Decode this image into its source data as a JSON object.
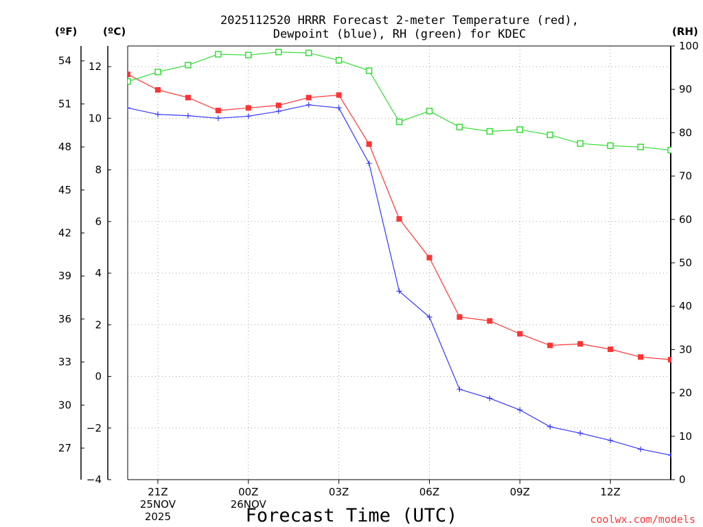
{
  "chart_data": {
    "type": "line",
    "title_line1": "2025112520 HRRR Forecast 2-meter Temperature (red),",
    "title_line2": "Dewpoint (blue), RH (green) for KDEC",
    "xlabel": "Forecast Time (UTC)",
    "units": {
      "fahrenheit": "(ºF)",
      "celsius": "(ºC)",
      "rh": "(RH)"
    },
    "credit": "coolwx.com/models",
    "x_ticks": [
      {
        "hour": 1,
        "lines": [
          "21Z",
          "25NOV",
          "2025"
        ]
      },
      {
        "hour": 4,
        "lines": [
          "00Z",
          "26NOV"
        ]
      },
      {
        "hour": 7,
        "lines": [
          "03Z"
        ]
      },
      {
        "hour": 10,
        "lines": [
          "06Z"
        ]
      },
      {
        "hour": 13,
        "lines": [
          "09Z"
        ]
      },
      {
        "hour": 16,
        "lines": [
          "12Z"
        ]
      }
    ],
    "xlim": [
      0,
      18
    ],
    "celsius_axis": {
      "ylim": [
        -4,
        12.8
      ],
      "ticks": [
        12,
        10,
        8,
        6,
        4,
        2,
        0,
        -2,
        -4
      ],
      "labels": [
        "12",
        "10",
        "8",
        "6",
        "4",
        "2",
        "0",
        "−2",
        "−4"
      ]
    },
    "fahrenheit_axis": {
      "ticks": [
        54,
        51,
        48,
        45,
        42,
        39,
        36,
        33,
        30,
        27
      ]
    },
    "rh_axis": {
      "ylim": [
        0,
        100
      ],
      "ticks": [
        100,
        90,
        80,
        70,
        60,
        50,
        40,
        30,
        20,
        10,
        0
      ]
    },
    "series": [
      {
        "name": "Temperature",
        "axis": "celsius",
        "color": "#ff3333",
        "marker": "filled-square",
        "values": [
          11.7,
          11.1,
          10.8,
          10.3,
          10.4,
          10.5,
          10.8,
          10.9,
          9.0,
          6.1,
          4.6,
          2.3,
          2.15,
          1.65,
          1.2,
          1.26,
          1.05,
          0.75,
          0.65
        ]
      },
      {
        "name": "Dewpoint",
        "axis": "celsius",
        "color": "#3333ff",
        "marker": "plus",
        "values": [
          10.4,
          10.15,
          10.1,
          10.0,
          10.08,
          10.27,
          10.52,
          10.4,
          8.25,
          3.3,
          2.3,
          -0.5,
          -0.85,
          -1.3,
          -1.95,
          -2.2,
          -2.48,
          -2.82,
          -3.05
        ]
      },
      {
        "name": "RH",
        "axis": "rh",
        "color": "#33dd33",
        "marker": "open-square",
        "values": [
          91.8,
          94.0,
          95.6,
          98.1,
          97.9,
          98.6,
          98.4,
          96.7,
          94.3,
          82.5,
          85.0,
          81.3,
          80.3,
          80.7,
          79.5,
          77.5,
          77.0,
          76.7,
          76.0
        ]
      }
    ]
  }
}
